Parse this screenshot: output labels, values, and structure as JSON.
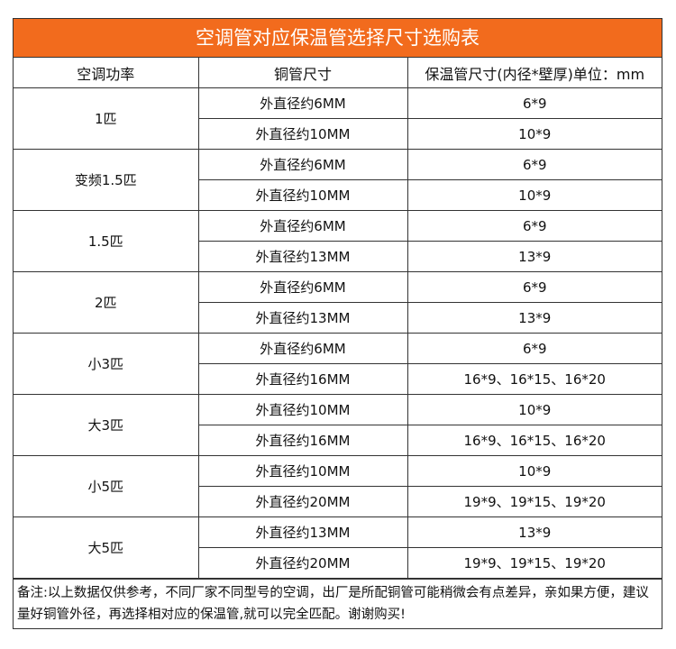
{
  "title": "空调管对应保温管选择尺寸选购表",
  "headers": [
    "空调功率",
    "铜管尺寸",
    "保温管尺寸(内径*壁厚)单位：mm"
  ],
  "groups": [
    {
      "power": "1匹",
      "rows": [
        [
          "外直径约6MM",
          "6*9"
        ],
        [
          "外直径约10MM",
          "10*9"
        ]
      ]
    },
    {
      "power": "变频1.5匹",
      "rows": [
        [
          "外直径约6MM",
          "6*9"
        ],
        [
          "外直径约10MM",
          "10*9"
        ]
      ]
    },
    {
      "power": "1.5匹",
      "rows": [
        [
          "外直径约6MM",
          "6*9"
        ],
        [
          "外直径约13MM",
          "13*9"
        ]
      ]
    },
    {
      "power": "2匹",
      "rows": [
        [
          "外直径约6MM",
          "6*9"
        ],
        [
          "外直径约13MM",
          "13*9"
        ]
      ]
    },
    {
      "power": "小3匹",
      "rows": [
        [
          "外直径约6MM",
          "6*9"
        ],
        [
          "外直径约16MM",
          "16*9、16*15、16*20"
        ]
      ]
    },
    {
      "power": "大3匹",
      "rows": [
        [
          "外直径约10MM",
          "10*9"
        ],
        [
          "外直径约16MM",
          "16*9、16*15、16*20"
        ]
      ]
    },
    {
      "power": "小5匹",
      "rows": [
        [
          "外直径约10MM",
          "10*9"
        ],
        [
          "外直径约20MM",
          "19*9、19*15、19*20"
        ]
      ]
    },
    {
      "power": "大5匹",
      "rows": [
        [
          "外直径约13MM",
          "13*9"
        ],
        [
          "外直径约20MM",
          "19*9、19*15、19*20"
        ]
      ]
    }
  ],
  "note": "备注:以上数据仅供参考，不同厂家不同型号的空调，出厂是所配铜管可能稍微会有点差异，亲如果方便，建议量好铜管外径，再选择相对应的保温管,就可以完全匹配。谢谢购买!"
}
